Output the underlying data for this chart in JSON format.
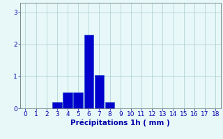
{
  "categories": [
    0,
    1,
    2,
    3,
    4,
    5,
    6,
    7,
    8,
    9,
    10,
    11,
    12,
    13,
    14,
    15,
    16,
    17,
    18
  ],
  "values": [
    0,
    0,
    0,
    0.2,
    0.5,
    0.5,
    2.3,
    1.05,
    0.2,
    0,
    0,
    0,
    0,
    0,
    0,
    0,
    0,
    0,
    0
  ],
  "bar_color": "#0000cc",
  "bar_edge_color": "#1144cc",
  "bg_color": "#e8f8f8",
  "grid_color": "#aacccc",
  "axis_color": "#778888",
  "text_color": "#0000aa",
  "xlabel": "Précipitations 1h ( mm )",
  "ylim": [
    0,
    3.3
  ],
  "yticks": [
    0,
    1,
    2,
    3
  ],
  "xlim": [
    -0.5,
    18.5
  ],
  "xlabel_fontsize": 7.5,
  "tick_fontsize": 6.5
}
